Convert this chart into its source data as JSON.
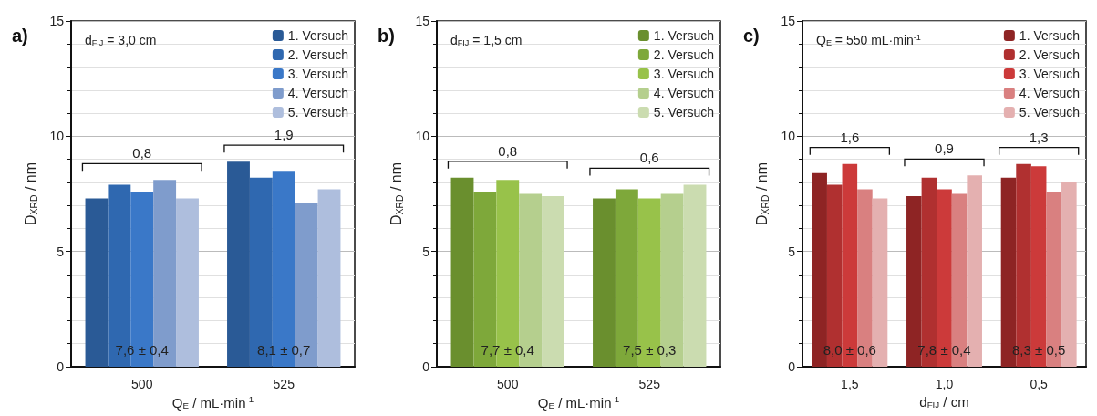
{
  "chart_data": [
    {
      "type": "bar",
      "title": "a)",
      "subtitle": "d$_{FIJ}$ = 3,0 cm",
      "xlabel": "Q$_{E}$ / mL·min$^{-1}$",
      "ylabel": "D$_{XRD}$ / nm",
      "categories": [
        "500",
        "525"
      ],
      "ylim": [
        0,
        15
      ],
      "yticks": [
        0,
        5,
        10,
        15
      ],
      "grid": "y",
      "legend": "top right",
      "series": [
        {
          "name": "1. Versuch",
          "color": "#2a5a96",
          "values": [
            7.3,
            8.9
          ]
        },
        {
          "name": "2. Versuch",
          "color": "#2f68b0",
          "values": [
            7.9,
            8.2
          ]
        },
        {
          "name": "3. Versuch",
          "color": "#3a78c8",
          "values": [
            7.6,
            8.5
          ]
        },
        {
          "name": "4. Versuch",
          "color": "#7f9ccc",
          "values": [
            8.1,
            7.1
          ]
        },
        {
          "name": "5. Versuch",
          "color": "#aebedd",
          "values": [
            7.3,
            7.7
          ]
        }
      ],
      "annotations": [
        "0,8",
        "1,9",
        "7,6 ± 0,4",
        "8,1 ± 0,7"
      ]
    },
    {
      "type": "bar",
      "title": "b)",
      "subtitle": "d$_{FIJ}$ = 1,5 cm",
      "xlabel": "Q$_{E}$ / mL·min$^{-1}$",
      "ylabel": "D$_{XRD}$ / nm",
      "categories": [
        "500",
        "525"
      ],
      "ylim": [
        0,
        15
      ],
      "yticks": [
        0,
        5,
        10,
        15
      ],
      "grid": "y",
      "legend": "top right",
      "series": [
        {
          "name": "1. Versuch",
          "color": "#6a8f2e",
          "values": [
            8.2,
            7.3
          ]
        },
        {
          "name": "2. Versuch",
          "color": "#7ea83a",
          "values": [
            7.6,
            7.7
          ]
        },
        {
          "name": "3. Versuch",
          "color": "#98c24a",
          "values": [
            8.1,
            7.3
          ]
        },
        {
          "name": "4. Versuch",
          "color": "#b5cf8e",
          "values": [
            7.5,
            7.5
          ]
        },
        {
          "name": "5. Versuch",
          "color": "#cbdcb0",
          "values": [
            7.4,
            7.9
          ]
        }
      ],
      "annotations": [
        "0,8",
        "0,6",
        "7,7 ± 0,4",
        "7,5 ± 0,3"
      ]
    },
    {
      "type": "bar",
      "title": "c)",
      "subtitle": "Q$_{E}$ = 550 mL·min$^{-1}$",
      "xlabel": "d$_{FIJ}$ / cm",
      "ylabel": "D$_{XRD}$ / nm",
      "categories": [
        "1,5",
        "1,0",
        "0,5"
      ],
      "ylim": [
        0,
        15
      ],
      "yticks": [
        0,
        5,
        10,
        15
      ],
      "grid": "y",
      "legend": "top right",
      "series": [
        {
          "name": "1. Versuch",
          "color": "#8e2424",
          "values": [
            8.4,
            7.4,
            8.2
          ]
        },
        {
          "name": "2. Versuch",
          "color": "#b03030",
          "values": [
            7.9,
            8.2,
            8.8
          ]
        },
        {
          "name": "3. Versuch",
          "color": "#cc3a3a",
          "values": [
            8.8,
            7.7,
            8.7
          ]
        },
        {
          "name": "4. Versuch",
          "color": "#d98080",
          "values": [
            7.7,
            7.5,
            7.6
          ]
        },
        {
          "name": "5. Versuch",
          "color": "#e4b0b0",
          "values": [
            7.3,
            8.3,
            8.0
          ]
        }
      ],
      "annotations": [
        "1,6",
        "0,9",
        "1,3",
        "8,0 ± 0,6",
        "7,8 ± 0,4",
        "8,3 ± 0,5"
      ]
    }
  ]
}
